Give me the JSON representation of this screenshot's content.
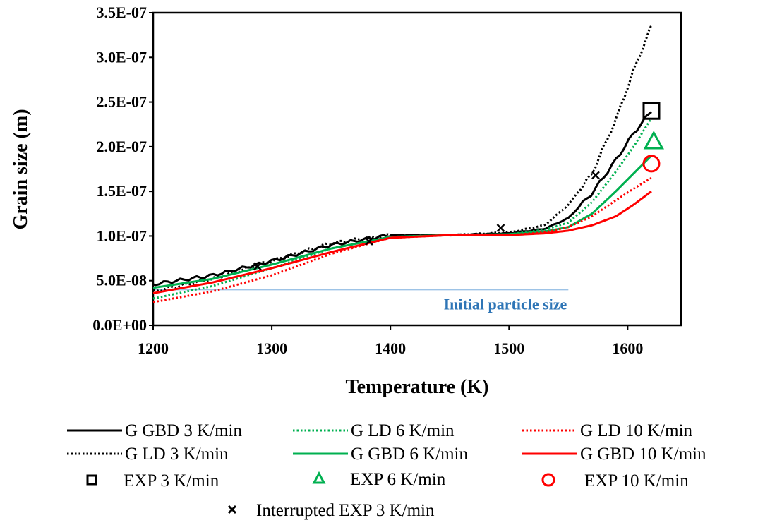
{
  "chart_data": {
    "type": "line",
    "title": "",
    "xlabel": "Temperature (K)",
    "ylabel": "Grain size (m)",
    "xlim": [
      1200,
      1650
    ],
    "ylim": [
      0,
      3.5e-07
    ],
    "x_ticks": [
      1200,
      1300,
      1400,
      1500,
      1600
    ],
    "y_ticks": [
      0,
      5e-08,
      1e-07,
      1.5e-07,
      2e-07,
      2.5e-07,
      3e-07,
      3.5e-07
    ],
    "y_tick_labels": [
      "0.0E+00",
      "5.0E-08",
      "1.0E-07",
      "1.5E-07",
      "2.0E-07",
      "2.5E-07",
      "3.0E-07",
      "3.5E-07"
    ],
    "x_tick_labels": [
      "1200",
      "1300",
      "1400",
      "1500",
      "1600"
    ],
    "grid": false,
    "legend_position": "bottom",
    "annotation": {
      "text": "Initial particle size",
      "value": 4e-08,
      "x_range": [
        1200,
        1550
      ],
      "color": "#9dc3e6",
      "text_color": "#2e75b6"
    },
    "series": [
      {
        "name": "G GBD 3 K/min",
        "color": "#000000",
        "style": "solid",
        "noisy": true,
        "x": [
          1200,
          1250,
          1300,
          1350,
          1400,
          1450,
          1500,
          1530,
          1550,
          1570,
          1590,
          1605,
          1620
        ],
        "y": [
          4.6e-08,
          5.6e-08,
          7.2e-08,
          9e-08,
          1.01e-07,
          1.01e-07,
          1.03e-07,
          1.08e-07,
          1.2e-07,
          1.48e-07,
          1.85e-07,
          2.15e-07,
          2.4e-07
        ]
      },
      {
        "name": "G LD 3 K/min",
        "color": "#000000",
        "style": "dotted",
        "noisy": true,
        "x": [
          1200,
          1250,
          1300,
          1350,
          1400,
          1450,
          1500,
          1530,
          1550,
          1570,
          1590,
          1605,
          1620
        ],
        "y": [
          3.8e-08,
          5.2e-08,
          7.2e-08,
          9.2e-08,
          1.01e-07,
          1.01e-07,
          1.04e-07,
          1.12e-07,
          1.35e-07,
          1.7e-07,
          2.3e-07,
          2.85e-07,
          3.35e-07
        ]
      },
      {
        "name": "G LD 6 K/min",
        "color": "#00b050",
        "style": "dotted",
        "noisy": false,
        "x": [
          1200,
          1250,
          1300,
          1350,
          1400,
          1450,
          1500,
          1530,
          1550,
          1570,
          1590,
          1605,
          1620
        ],
        "y": [
          3e-08,
          4.4e-08,
          6.4e-08,
          8.6e-08,
          9.9e-08,
          1.01e-07,
          1.02e-07,
          1.07e-07,
          1.15e-07,
          1.38e-07,
          1.72e-07,
          2e-07,
          2.32e-07
        ]
      },
      {
        "name": "G GBD 6 K/min",
        "color": "#00b050",
        "style": "solid",
        "noisy": false,
        "x": [
          1200,
          1250,
          1300,
          1350,
          1400,
          1450,
          1500,
          1530,
          1550,
          1570,
          1590,
          1605,
          1620
        ],
        "y": [
          4.2e-08,
          5.2e-08,
          6.8e-08,
          8.6e-08,
          9.9e-08,
          1.01e-07,
          1.02e-07,
          1.05e-07,
          1.1e-07,
          1.25e-07,
          1.5e-07,
          1.7e-07,
          1.9e-07
        ]
      },
      {
        "name": "G LD 10 K/min",
        "color": "#ff0000",
        "style": "dotted",
        "noisy": false,
        "x": [
          1200,
          1250,
          1300,
          1350,
          1400,
          1450,
          1500,
          1530,
          1550,
          1570,
          1590,
          1605,
          1620
        ],
        "y": [
          2.6e-08,
          3.8e-08,
          5.6e-08,
          8e-08,
          9.8e-08,
          1.01e-07,
          1.01e-07,
          1.04e-07,
          1.1e-07,
          1.22e-07,
          1.4e-07,
          1.53e-07,
          1.65e-07
        ]
      },
      {
        "name": "G GBD 10 K/min",
        "color": "#ff0000",
        "style": "solid",
        "noisy": false,
        "x": [
          1200,
          1250,
          1300,
          1350,
          1400,
          1450,
          1500,
          1530,
          1550,
          1570,
          1590,
          1605,
          1620
        ],
        "y": [
          3.6e-08,
          4.8e-08,
          6.4e-08,
          8.2e-08,
          9.8e-08,
          1.01e-07,
          1.01e-07,
          1.03e-07,
          1.06e-07,
          1.12e-07,
          1.22e-07,
          1.35e-07,
          1.5e-07
        ]
      }
    ],
    "markers": [
      {
        "name": "EXP 3 K/min",
        "shape": "square",
        "color": "#000000",
        "points": [
          [
            1620,
            2.4e-07
          ]
        ]
      },
      {
        "name": "EXP 6 K/min",
        "shape": "triangle",
        "color": "#00b050",
        "points": [
          [
            1622,
            2.06e-07
          ]
        ]
      },
      {
        "name": "EXP 10 K/min",
        "shape": "circle",
        "color": "#ff0000",
        "points": [
          [
            1620,
            1.81e-07
          ]
        ]
      },
      {
        "name": "Interrupted EXP 3 K/min",
        "shape": "x",
        "color": "#000000",
        "points": [
          [
            1288,
            6.6e-08
          ],
          [
            1382,
            9.4e-08
          ],
          [
            1493,
            1.09e-07
          ],
          [
            1573,
            1.68e-07
          ]
        ]
      }
    ]
  }
}
